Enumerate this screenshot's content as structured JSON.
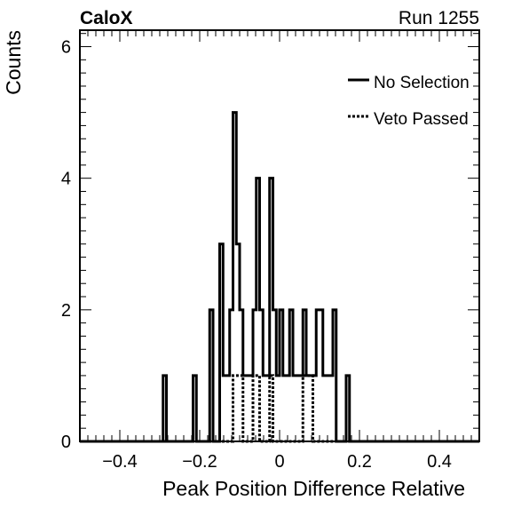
{
  "chart_data": {
    "type": "histogram",
    "experiment_label": "CaloX",
    "run_label": "Run 1255",
    "xlabel": "Peak Position Difference Relative",
    "ylabel": "Counts",
    "xlim": [
      -0.5,
      0.5
    ],
    "ylim": [
      0,
      6.25
    ],
    "x_ticks": [
      -0.4,
      -0.2,
      0,
      0.2,
      0.4
    ],
    "x_tick_labels": [
      "−0.4",
      "−0.2",
      "0",
      "0.2",
      "0.4"
    ],
    "y_ticks": [
      0,
      2,
      4,
      6
    ],
    "y_tick_labels": [
      "0",
      "2",
      "4",
      "6"
    ],
    "bin_width": 0.0083333,
    "grid": false,
    "legend_position": "top-right",
    "series": [
      {
        "name": "No Selection",
        "style": "solid",
        "bins": [
          {
            "x": -0.2875,
            "count": 1
          },
          {
            "x": -0.2125,
            "count": 1
          },
          {
            "x": -0.1708,
            "count": 2
          },
          {
            "x": -0.1458,
            "count": 3
          },
          {
            "x": -0.1375,
            "count": 1
          },
          {
            "x": -0.1292,
            "count": 1
          },
          {
            "x": -0.1208,
            "count": 2
          },
          {
            "x": -0.1125,
            "count": 5
          },
          {
            "x": -0.1042,
            "count": 3
          },
          {
            "x": -0.0958,
            "count": 2
          },
          {
            "x": -0.0875,
            "count": 1
          },
          {
            "x": -0.0792,
            "count": 1
          },
          {
            "x": -0.0708,
            "count": 1
          },
          {
            "x": -0.0625,
            "count": 2
          },
          {
            "x": -0.0542,
            "count": 4
          },
          {
            "x": -0.0458,
            "count": 2
          },
          {
            "x": -0.0375,
            "count": 1
          },
          {
            "x": -0.0292,
            "count": 1
          },
          {
            "x": -0.0208,
            "count": 4
          },
          {
            "x": -0.0125,
            "count": 2
          },
          {
            "x": -0.0042,
            "count": 1
          },
          {
            "x": 0.0042,
            "count": 2
          },
          {
            "x": 0.0125,
            "count": 1
          },
          {
            "x": 0.0208,
            "count": 1
          },
          {
            "x": 0.0292,
            "count": 2
          },
          {
            "x": 0.0375,
            "count": 1
          },
          {
            "x": 0.0458,
            "count": 1
          },
          {
            "x": 0.0542,
            "count": 1
          },
          {
            "x": 0.0625,
            "count": 2
          },
          {
            "x": 0.0708,
            "count": 1
          },
          {
            "x": 0.0792,
            "count": 1
          },
          {
            "x": 0.0875,
            "count": 1
          },
          {
            "x": 0.0958,
            "count": 2
          },
          {
            "x": 0.1042,
            "count": 2
          },
          {
            "x": 0.1125,
            "count": 1
          },
          {
            "x": 0.1208,
            "count": 1
          },
          {
            "x": 0.1292,
            "count": 1
          },
          {
            "x": 0.1375,
            "count": 2
          },
          {
            "x": 0.1708,
            "count": 1
          }
        ]
      },
      {
        "name": "Veto Passed",
        "style": "dotted",
        "bins": [
          {
            "x": -0.1125,
            "count": 1
          },
          {
            "x": -0.1042,
            "count": 1
          },
          {
            "x": -0.0958,
            "count": 1
          },
          {
            "x": -0.0625,
            "count": 1
          },
          {
            "x": -0.0542,
            "count": 1
          },
          {
            "x": -0.0208,
            "count": 1
          },
          {
            "x": 0.0625,
            "count": 1
          },
          {
            "x": 0.0708,
            "count": 1
          },
          {
            "x": 0.0792,
            "count": 1
          }
        ]
      }
    ]
  }
}
